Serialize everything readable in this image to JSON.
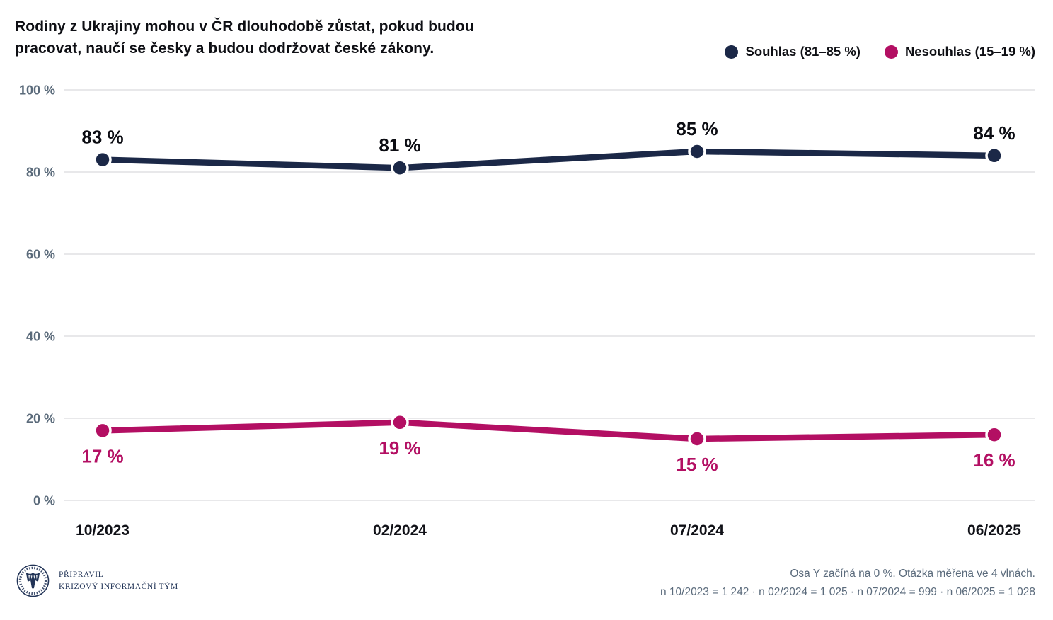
{
  "header": {
    "title_lines": [
      "Rodiny z Ukrajiny mohou v ČR dlouhodobě zůstat, pokud budou",
      "pracovat, naučí se česky a budou dodržovat české zákony."
    ]
  },
  "legend": {
    "items": [
      {
        "label": "Souhlas (81–85 %)",
        "color": "#1b2847"
      },
      {
        "label": "Nesouhlas (15–19 %)",
        "color": "#b30f63"
      }
    ]
  },
  "chart_data": {
    "type": "line",
    "title": "Rodiny z Ukrajiny mohou v ČR dlouhodobě zůstat, pokud budou pracovat, naučí se česky a budou dodržovat české zákony.",
    "categories": [
      "10/2023",
      "02/2024",
      "07/2024",
      "06/2025"
    ],
    "series": [
      {
        "name": "Souhlas (81–85 %)",
        "color": "#1b2847",
        "values": [
          83,
          81,
          85,
          84
        ],
        "point_labels": [
          "83 %",
          "81 %",
          "85 %",
          "84 %"
        ],
        "label_position": "above",
        "label_color": "#0c0d13"
      },
      {
        "name": "Nesouhlas (15–19 %)",
        "color": "#b30f63",
        "values": [
          17,
          19,
          15,
          16
        ],
        "point_labels": [
          "17 %",
          "19 %",
          "15 %",
          "16 %"
        ],
        "label_position": "below",
        "label_color": "#b30f63"
      }
    ],
    "ylim": [
      0,
      100
    ],
    "yticks": [
      0,
      20,
      40,
      60,
      80,
      100
    ],
    "ytick_labels": [
      "0 %",
      "20 %",
      "40 %",
      "60 %",
      "80 %",
      "100 %"
    ],
    "grid": true,
    "legend_position": "top-right"
  },
  "footer": {
    "logo": "krizovy-informacni-tym-seal",
    "prepared_line1": "PŘIPRAVIL",
    "prepared_line2": "KRIZOVÝ INFORMAČNÍ TÝM",
    "note_line1": "Osa Y začíná na 0 %. Otázka měřena ve 4 vlnách.",
    "note_line2": "n 10/2023 = 1 242 · n 02/2024 = 1 025 · n 07/2024 = 999 · n 06/2025 = 1 028"
  },
  "colors": {
    "accent_dark": "#1b2847",
    "accent_pink": "#b30f63",
    "gridline": "#e8e8ea",
    "axis_text": "#5a6a7a",
    "note_text": "#5b6b7c",
    "text": "#0e0f14"
  }
}
